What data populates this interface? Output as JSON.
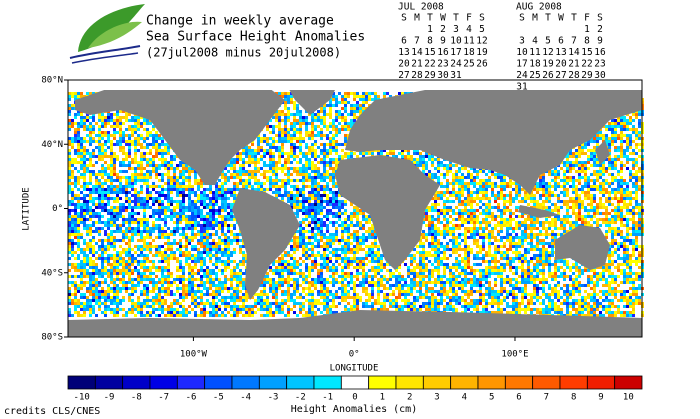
{
  "title": [
    "Change in weekly average",
    "Sea Surface Height Anomalies",
    "(27jul2008 minus 20jul2008)"
  ],
  "calendars": [
    {
      "month": "JUL 2008",
      "weekdays": [
        "S",
        "M",
        "T",
        "W",
        "T",
        "F",
        "S"
      ],
      "weeks": [
        [
          null,
          null,
          1,
          2,
          3,
          4,
          5
        ],
        [
          6,
          7,
          8,
          9,
          10,
          11,
          12
        ],
        [
          13,
          14,
          15,
          16,
          17,
          18,
          19
        ],
        [
          20,
          21,
          22,
          23,
          24,
          25,
          26
        ],
        [
          27,
          28,
          29,
          30,
          31,
          null,
          null
        ]
      ],
      "highlight_weeks": [
        3,
        4
      ],
      "highlight_color": "#1c1ca8"
    },
    {
      "month": "AUG 2008",
      "weekdays": [
        "S",
        "M",
        "T",
        "W",
        "T",
        "F",
        "S"
      ],
      "weeks": [
        [
          null,
          null,
          null,
          null,
          null,
          1,
          2
        ],
        [
          3,
          4,
          5,
          6,
          7,
          8,
          9
        ],
        [
          10,
          11,
          12,
          13,
          14,
          15,
          16
        ],
        [
          17,
          18,
          19,
          20,
          21,
          22,
          23
        ],
        [
          24,
          25,
          26,
          27,
          28,
          29,
          30
        ],
        [
          31,
          null,
          null,
          null,
          null,
          null,
          null
        ]
      ],
      "highlight_weeks": [],
      "highlight_color": "#1c1ca8"
    }
  ],
  "map": {
    "y_label": "LATITUDE",
    "x_label": "LONGITUDE",
    "xlim": [
      -178,
      179
    ],
    "ylim": [
      -80,
      80
    ],
    "yticks": [
      {
        "value": 80,
        "label": "80°N"
      },
      {
        "value": 40,
        "label": "40°N"
      },
      {
        "value": 0,
        "label": "0°"
      },
      {
        "value": -40,
        "label": "40°S"
      },
      {
        "value": -80,
        "label": "80°S"
      }
    ],
    "xticks": [
      {
        "value": -100,
        "label": "100°W"
      },
      {
        "value": 0,
        "label": "0°"
      },
      {
        "value": 100,
        "label": "100°E"
      }
    ],
    "land_color": "#808080"
  },
  "colorbar": {
    "label": "Height Anomalies (cm)",
    "ticks": [
      -10,
      -9,
      -8,
      -7,
      -6,
      -5,
      -4,
      -3,
      -2,
      -1,
      0,
      1,
      2,
      3,
      4,
      5,
      6,
      7,
      8,
      9,
      10
    ],
    "colors": [
      "#000078",
      "#0000a0",
      "#0000c8",
      "#0000e6",
      "#1e28ff",
      "#0050ff",
      "#0078ff",
      "#00a0ff",
      "#00c4ff",
      "#00e8ff",
      "#ffffff",
      "#ffff00",
      "#ffe600",
      "#ffcc00",
      "#ffb400",
      "#ff9600",
      "#ff7800",
      "#ff5a00",
      "#ff3c00",
      "#f01e00",
      "#cc0000"
    ]
  },
  "credits": "credits CLS/CNES"
}
